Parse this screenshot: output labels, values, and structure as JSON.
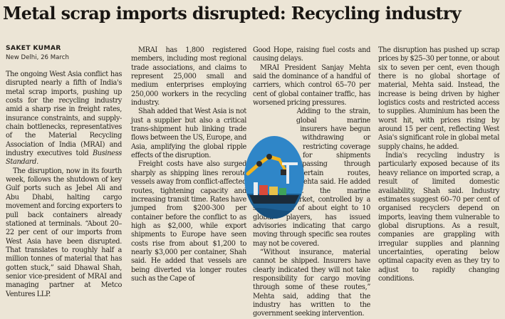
{
  "article": {
    "headline": "Metal scrap imports disrupted: Recycling industry",
    "byline": "SAKET KUMAR",
    "dateline": "New Delhi, 26 March",
    "col1": [
      "The ongoing West Asia conflict has disrupted nearly a fifth of India's metal scrap imports, pushing up costs for the recycling industry amid a sharp rise in freight rates, insurance constraints, and supply-chain bottlenecks, representatives of the Material Recycling Association of India (MRAI) and industry executives told",
      "The disruption, now in its fourth week, follows the shutdown of key Gulf ports such as Jebel Ali and Abu Dhabi, halting cargo movement and forcing exporters to pull back containers already stationed at terminals. “About 20–22 per cent of our imports from West Asia have been disrupted. That translates to roughly half a million tonnes of material that has gotten stuck,” said Dhawal Shah, senior vice-president of MRAI and managing partner at Metco Ventures LLP."
    ],
    "col1_italic": "Business Standard.",
    "col2": [
      "MRAI has 1,800 registered members, including most regional trade associations, and claims to represent 25,000 small and medium enterprises employing 250,000 workers in the recycling industry.",
      "Shah added that West Asia is not just a supplier but also a critical trans-shipment hub linking trade flows between the US, Europe, and Asia, amplifying the global ripple effects of the disruption.",
      "Freight costs have also surged sharply as shipping lines reroute vessels away from conflict-affected routes, tightening capacity and increasing transit time. Rates have jumped from $200-300 per container before the conflict to as high as $2,000, while export shipments to Europe have seen costs rise from about $1,200 to nearly $3,000 per container, Shah said. He added that vessels are being diverted via longer routes such as the Cape of"
    ],
    "col3": [
      "Good Hope, raising fuel costs and causing delays.",
      "MRAI President Sanjay Mehta said the dominance of a handful of carriers, which control 65–70 per cent of global container traffic, has worsened pricing pressures.",
      "Adding to the strain, global marine insurers have begun withdrawing or restricting coverage for shipments passing through certain routes, Mehta said. He added that the marine insurance market, controlled by a small group of about eight to 10 global players, has issued advisories indicating that cargo moving through specific sea routes may not be covered.",
      "“Without insurance, material cannot be shipped. Insurers have clearly indicated they will not take responsibility for cargo moving through some of these routes,” Mehta said, adding that the industry has written to the government seeking intervention."
    ],
    "col4": [
      "The disruption has pushed up scrap prices by $25–30 per tonne, or about six to seven per cent, even though there is no global shortage of material, Mehta said. Instead, the increase is being driven by higher logistics costs and restricted access to supplies. Aluminium has been the worst hit, with prices rising by around 15 per cent, reflecting West Asia's significant role in global metal supply chains, he added.",
      "India's recycling industry is particularly exposed because of its heavy reliance on imported scrap, a result of limited domestic availability, Shah said. Industry estimates suggest 60–70 per cent of organised recyclers depend on imports, leaving them vulnerable to global disruptions. As a result, companies are grappling with irregular supplies and planning uncertainties, operating below optimal capacity even as they try to adjust to rapidly changing conditions."
    ]
  },
  "illustration": {
    "icon": "port-crane-ship-illustration-icon",
    "colors": {
      "sky": "#2f86c8",
      "arm": "#f2b41e",
      "ship": "#1b2b3a",
      "sea": "#1d5f93"
    }
  }
}
